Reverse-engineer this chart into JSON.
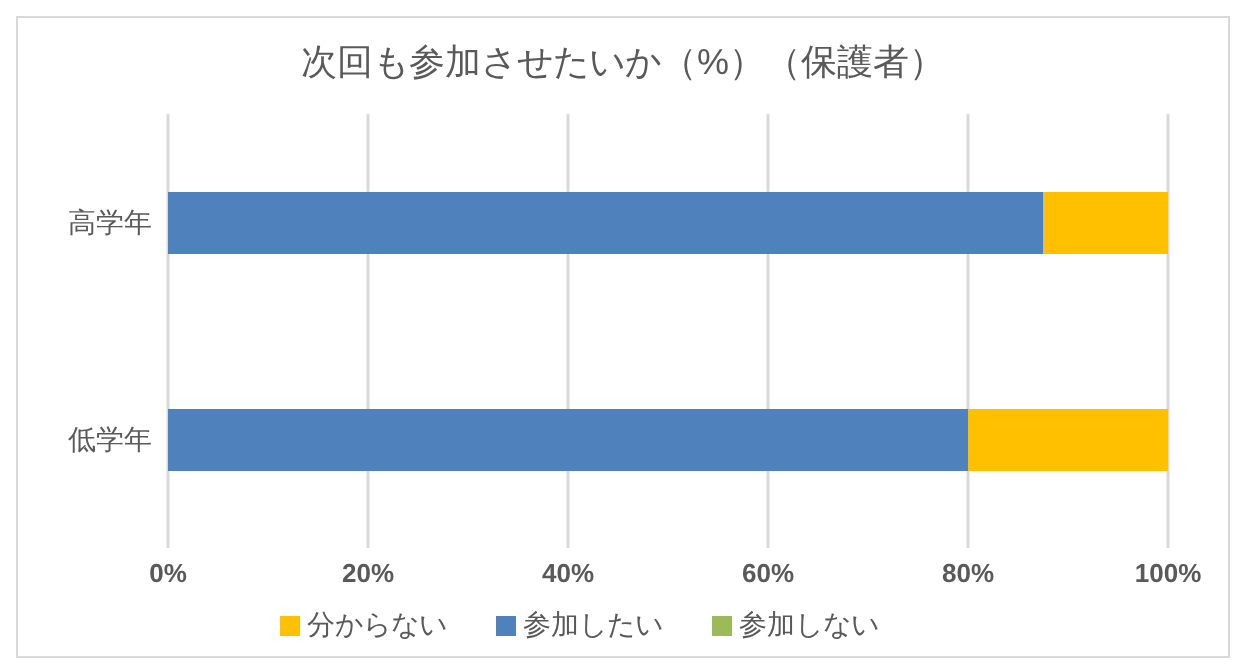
{
  "chart_data": {
    "type": "bar",
    "orientation": "horizontal",
    "stacked": true,
    "title": "次回も参加させたいか（%）（保護者）",
    "categories": [
      "高学年",
      "低学年"
    ],
    "series": [
      {
        "name": "参加したい",
        "color": "#4f81bd",
        "values": [
          87.5,
          80
        ]
      },
      {
        "name": "分からない",
        "color": "#ffc000",
        "values": [
          12.5,
          20
        ]
      },
      {
        "name": "参加しない",
        "color": "#9bbb59",
        "values": [
          0,
          0
        ]
      }
    ],
    "xlim": [
      0,
      100
    ],
    "xticks": [
      {
        "value": 0,
        "label": "0%"
      },
      {
        "value": 20,
        "label": "20%"
      },
      {
        "value": 40,
        "label": "40%"
      },
      {
        "value": 60,
        "label": "60%"
      },
      {
        "value": 80,
        "label": "80%"
      },
      {
        "value": 100,
        "label": "100%"
      }
    ],
    "grid": "x",
    "legend": "bottom"
  }
}
